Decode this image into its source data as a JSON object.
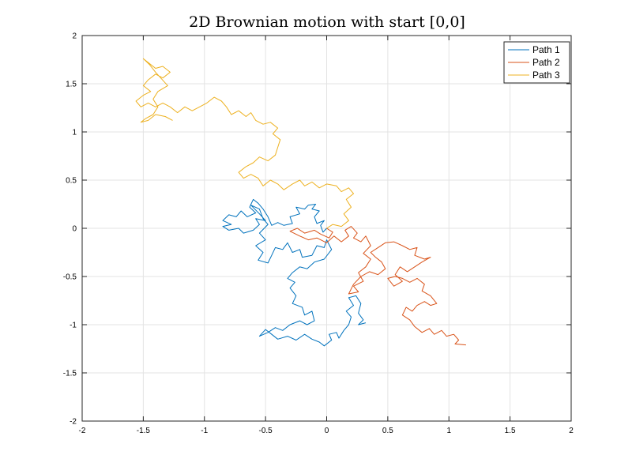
{
  "chart_data": {
    "type": "line",
    "title": "2D Brownian motion with start [0,0]",
    "xlabel": "",
    "ylabel": "",
    "xlim": [
      -2,
      2
    ],
    "ylim": [
      -2,
      2
    ],
    "xticks": [
      -2,
      -1.5,
      -1,
      -0.5,
      0,
      0.5,
      1,
      1.5,
      2
    ],
    "yticks": [
      -2,
      -1.5,
      -1,
      -0.5,
      0,
      0.5,
      1,
      1.5,
      2
    ],
    "xtick_labels": [
      "-2",
      "-1.5",
      "-1",
      "-0.5",
      "0",
      "0.5",
      "1",
      "1.5",
      "2"
    ],
    "ytick_labels": [
      "-2",
      "-1.5",
      "-1",
      "-0.5",
      "0",
      "0.5",
      "1",
      "1.5",
      "2"
    ],
    "grid": true,
    "legend_position": "top-right",
    "series": [
      {
        "name": "Path 1",
        "color": "#0072BD",
        "points": [
          [
            0.0,
            0.0
          ],
          [
            -0.03,
            -0.04
          ],
          [
            -0.05,
            0.03
          ],
          [
            -0.02,
            0.08
          ],
          [
            -0.08,
            0.05
          ],
          [
            -0.1,
            0.12
          ],
          [
            -0.06,
            0.18
          ],
          [
            -0.12,
            0.2
          ],
          [
            -0.09,
            0.25
          ],
          [
            -0.15,
            0.24
          ],
          [
            -0.18,
            0.2
          ],
          [
            -0.25,
            0.22
          ],
          [
            -0.22,
            0.15
          ],
          [
            -0.3,
            0.12
          ],
          [
            -0.28,
            0.05
          ],
          [
            -0.35,
            0.03
          ],
          [
            -0.4,
            0.06
          ],
          [
            -0.45,
            0.03
          ],
          [
            -0.48,
            0.12
          ],
          [
            -0.52,
            0.2
          ],
          [
            -0.56,
            0.26
          ],
          [
            -0.6,
            0.3
          ],
          [
            -0.63,
            0.22
          ],
          [
            -0.58,
            0.16
          ],
          [
            -0.65,
            0.12
          ],
          [
            -0.7,
            0.18
          ],
          [
            -0.74,
            0.12
          ],
          [
            -0.8,
            0.14
          ],
          [
            -0.85,
            0.08
          ],
          [
            -0.78,
            0.04
          ],
          [
            -0.85,
            0.02
          ],
          [
            -0.8,
            -0.02
          ],
          [
            -0.72,
            0.0
          ],
          [
            -0.68,
            -0.05
          ],
          [
            -0.6,
            -0.02
          ],
          [
            -0.55,
            0.04
          ],
          [
            -0.58,
            0.1
          ],
          [
            -0.5,
            0.08
          ],
          [
            -0.55,
            0.15
          ],
          [
            -0.62,
            0.24
          ],
          [
            -0.55,
            0.2
          ],
          [
            -0.52,
            0.1
          ],
          [
            -0.48,
            0.04
          ],
          [
            -0.55,
            -0.05
          ],
          [
            -0.5,
            -0.12
          ],
          [
            -0.58,
            -0.18
          ],
          [
            -0.52,
            -0.25
          ],
          [
            -0.56,
            -0.33
          ],
          [
            -0.48,
            -0.36
          ],
          [
            -0.45,
            -0.28
          ],
          [
            -0.42,
            -0.2
          ],
          [
            -0.36,
            -0.22
          ],
          [
            -0.32,
            -0.15
          ],
          [
            -0.28,
            -0.25
          ],
          [
            -0.22,
            -0.22
          ],
          [
            -0.2,
            -0.3
          ],
          [
            -0.12,
            -0.28
          ],
          [
            -0.08,
            -0.18
          ],
          [
            -0.02,
            -0.2
          ],
          [
            0.0,
            -0.12
          ],
          [
            0.04,
            -0.22
          ],
          [
            -0.02,
            -0.32
          ],
          [
            -0.1,
            -0.35
          ],
          [
            -0.16,
            -0.42
          ],
          [
            -0.22,
            -0.4
          ],
          [
            -0.28,
            -0.46
          ],
          [
            -0.32,
            -0.52
          ],
          [
            -0.26,
            -0.56
          ],
          [
            -0.3,
            -0.62
          ],
          [
            -0.25,
            -0.7
          ],
          [
            -0.28,
            -0.78
          ],
          [
            -0.2,
            -0.82
          ],
          [
            -0.18,
            -0.9
          ],
          [
            -0.12,
            -0.86
          ],
          [
            -0.1,
            -0.96
          ],
          [
            -0.16,
            -1.0
          ],
          [
            -0.22,
            -0.96
          ],
          [
            -0.3,
            -1.0
          ],
          [
            -0.36,
            -1.06
          ],
          [
            -0.42,
            -1.03
          ],
          [
            -0.48,
            -1.08
          ],
          [
            -0.55,
            -1.12
          ],
          [
            -0.5,
            -1.05
          ],
          [
            -0.45,
            -1.1
          ],
          [
            -0.4,
            -1.15
          ],
          [
            -0.32,
            -1.12
          ],
          [
            -0.25,
            -1.16
          ],
          [
            -0.18,
            -1.1
          ],
          [
            -0.12,
            -1.15
          ],
          [
            -0.06,
            -1.18
          ],
          [
            -0.02,
            -1.22
          ],
          [
            0.04,
            -1.16
          ],
          [
            0.02,
            -1.1
          ],
          [
            0.08,
            -1.08
          ],
          [
            0.1,
            -1.14
          ],
          [
            0.14,
            -1.06
          ],
          [
            0.18,
            -1.0
          ],
          [
            0.2,
            -0.92
          ],
          [
            0.16,
            -0.86
          ],
          [
            0.22,
            -0.8
          ],
          [
            0.18,
            -0.72
          ],
          [
            0.24,
            -0.7
          ],
          [
            0.28,
            -0.78
          ],
          [
            0.26,
            -0.88
          ],
          [
            0.3,
            -0.95
          ],
          [
            0.26,
            -1.0
          ],
          [
            0.32,
            -0.98
          ]
        ]
      },
      {
        "name": "Path 2",
        "color": "#D95319",
        "points": [
          [
            0.0,
            0.0
          ],
          [
            0.05,
            -0.04
          ],
          [
            0.02,
            -0.1
          ],
          [
            -0.05,
            -0.06
          ],
          [
            -0.1,
            -0.02
          ],
          [
            -0.18,
            -0.05
          ],
          [
            -0.24,
            0.0
          ],
          [
            -0.3,
            -0.03
          ],
          [
            -0.22,
            -0.08
          ],
          [
            -0.15,
            -0.12
          ],
          [
            -0.08,
            -0.1
          ],
          [
            0.0,
            -0.15
          ],
          [
            0.06,
            -0.08
          ],
          [
            0.12,
            -0.14
          ],
          [
            0.18,
            -0.08
          ],
          [
            0.15,
            -0.02
          ],
          [
            0.2,
            0.02
          ],
          [
            0.25,
            -0.05
          ],
          [
            0.22,
            -0.1
          ],
          [
            0.28,
            -0.14
          ],
          [
            0.32,
            -0.08
          ],
          [
            0.36,
            -0.18
          ],
          [
            0.3,
            -0.26
          ],
          [
            0.36,
            -0.32
          ],
          [
            0.32,
            -0.4
          ],
          [
            0.26,
            -0.46
          ],
          [
            0.3,
            -0.55
          ],
          [
            0.22,
            -0.6
          ],
          [
            0.26,
            -0.66
          ],
          [
            0.18,
            -0.68
          ],
          [
            0.22,
            -0.58
          ],
          [
            0.28,
            -0.5
          ],
          [
            0.35,
            -0.45
          ],
          [
            0.42,
            -0.48
          ],
          [
            0.48,
            -0.42
          ],
          [
            0.45,
            -0.35
          ],
          [
            0.4,
            -0.3
          ],
          [
            0.36,
            -0.25
          ],
          [
            0.42,
            -0.2
          ],
          [
            0.48,
            -0.15
          ],
          [
            0.55,
            -0.14
          ],
          [
            0.62,
            -0.18
          ],
          [
            0.68,
            -0.22
          ],
          [
            0.74,
            -0.2
          ],
          [
            0.72,
            -0.28
          ],
          [
            0.8,
            -0.32
          ],
          [
            0.85,
            -0.3
          ],
          [
            0.78,
            -0.35
          ],
          [
            0.72,
            -0.4
          ],
          [
            0.66,
            -0.45
          ],
          [
            0.6,
            -0.4
          ],
          [
            0.56,
            -0.48
          ],
          [
            0.62,
            -0.55
          ],
          [
            0.55,
            -0.6
          ],
          [
            0.5,
            -0.52
          ],
          [
            0.56,
            -0.5
          ],
          [
            0.62,
            -0.52
          ],
          [
            0.68,
            -0.56
          ],
          [
            0.74,
            -0.52
          ],
          [
            0.8,
            -0.58
          ],
          [
            0.78,
            -0.65
          ],
          [
            0.85,
            -0.7
          ],
          [
            0.9,
            -0.78
          ],
          [
            0.85,
            -0.8
          ],
          [
            0.8,
            -0.76
          ],
          [
            0.74,
            -0.8
          ],
          [
            0.7,
            -0.86
          ],
          [
            0.65,
            -0.82
          ],
          [
            0.62,
            -0.9
          ],
          [
            0.68,
            -0.95
          ],
          [
            0.72,
            -1.02
          ],
          [
            0.78,
            -1.08
          ],
          [
            0.84,
            -1.04
          ],
          [
            0.88,
            -1.1
          ],
          [
            0.94,
            -1.06
          ],
          [
            0.98,
            -1.12
          ],
          [
            1.04,
            -1.1
          ],
          [
            1.08,
            -1.16
          ],
          [
            1.05,
            -1.2
          ],
          [
            1.14,
            -1.21
          ]
        ]
      },
      {
        "name": "Path 3",
        "color": "#EDB120",
        "points": [
          [
            0.0,
            0.0
          ],
          [
            0.05,
            0.04
          ],
          [
            0.12,
            0.02
          ],
          [
            0.18,
            0.08
          ],
          [
            0.14,
            0.15
          ],
          [
            0.2,
            0.22
          ],
          [
            0.16,
            0.3
          ],
          [
            0.22,
            0.36
          ],
          [
            0.18,
            0.42
          ],
          [
            0.12,
            0.38
          ],
          [
            0.08,
            0.44
          ],
          [
            0.0,
            0.46
          ],
          [
            -0.06,
            0.42
          ],
          [
            -0.12,
            0.48
          ],
          [
            -0.18,
            0.44
          ],
          [
            -0.22,
            0.5
          ],
          [
            -0.28,
            0.46
          ],
          [
            -0.35,
            0.4
          ],
          [
            -0.4,
            0.46
          ],
          [
            -0.46,
            0.5
          ],
          [
            -0.52,
            0.44
          ],
          [
            -0.56,
            0.52
          ],
          [
            -0.62,
            0.56
          ],
          [
            -0.68,
            0.52
          ],
          [
            -0.72,
            0.58
          ],
          [
            -0.66,
            0.64
          ],
          [
            -0.6,
            0.68
          ],
          [
            -0.55,
            0.74
          ],
          [
            -0.48,
            0.7
          ],
          [
            -0.42,
            0.76
          ],
          [
            -0.4,
            0.84
          ],
          [
            -0.38,
            0.92
          ],
          [
            -0.44,
            0.98
          ],
          [
            -0.4,
            1.04
          ],
          [
            -0.46,
            1.1
          ],
          [
            -0.52,
            1.08
          ],
          [
            -0.58,
            1.12
          ],
          [
            -0.62,
            1.2
          ],
          [
            -0.66,
            1.16
          ],
          [
            -0.72,
            1.22
          ],
          [
            -0.78,
            1.18
          ],
          [
            -0.82,
            1.26
          ],
          [
            -0.86,
            1.32
          ],
          [
            -0.92,
            1.36
          ],
          [
            -0.98,
            1.3
          ],
          [
            -1.04,
            1.26
          ],
          [
            -1.1,
            1.22
          ],
          [
            -1.16,
            1.26
          ],
          [
            -1.22,
            1.2
          ],
          [
            -1.28,
            1.26
          ],
          [
            -1.34,
            1.3
          ],
          [
            -1.4,
            1.26
          ],
          [
            -1.46,
            1.3
          ],
          [
            -1.52,
            1.26
          ],
          [
            -1.56,
            1.32
          ],
          [
            -1.5,
            1.38
          ],
          [
            -1.44,
            1.42
          ],
          [
            -1.5,
            1.48
          ],
          [
            -1.46,
            1.54
          ],
          [
            -1.4,
            1.6
          ],
          [
            -1.34,
            1.56
          ],
          [
            -1.28,
            1.62
          ],
          [
            -1.34,
            1.68
          ],
          [
            -1.4,
            1.66
          ],
          [
            -1.46,
            1.72
          ],
          [
            -1.5,
            1.76
          ],
          [
            -1.45,
            1.7
          ],
          [
            -1.4,
            1.62
          ],
          [
            -1.35,
            1.55
          ],
          [
            -1.3,
            1.48
          ],
          [
            -1.38,
            1.42
          ],
          [
            -1.42,
            1.34
          ],
          [
            -1.38,
            1.26
          ],
          [
            -1.42,
            1.18
          ],
          [
            -1.48,
            1.14
          ],
          [
            -1.52,
            1.1
          ],
          [
            -1.46,
            1.12
          ],
          [
            -1.4,
            1.18
          ],
          [
            -1.32,
            1.16
          ],
          [
            -1.26,
            1.12
          ]
        ]
      }
    ]
  }
}
